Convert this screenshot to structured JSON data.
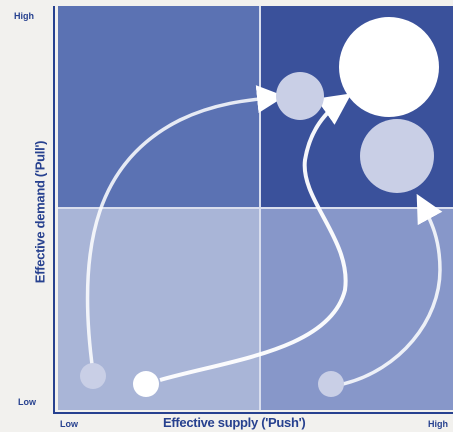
{
  "y_axis": {
    "title": "Effective demand ('Pull')",
    "high_label": "High",
    "low_label": "Low"
  },
  "x_axis": {
    "title": "Effective supply ('Push')",
    "low_label": "Low",
    "high_label": "High"
  },
  "colors": {
    "top_left": "#5b72b3",
    "top_right": "#3a519b",
    "bottom_left": "#a9b5d7",
    "bottom_right": "#8797c9",
    "axis": "#27418f",
    "circle_light": "#c9cfe6",
    "circle_white": "#ffffff"
  }
}
